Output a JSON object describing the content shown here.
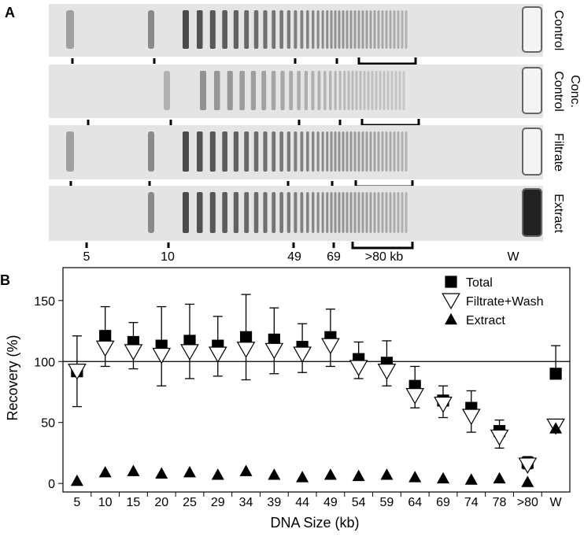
{
  "panel_a": {
    "label": "A",
    "lanes": [
      [
        "Control"
      ],
      [
        "Conc.",
        "Control"
      ],
      [
        "Filtrate"
      ],
      [
        "Extract"
      ]
    ],
    "size_labels": [
      "5",
      "10",
      "49",
      "69",
      ">80 kb",
      "W"
    ]
  },
  "chart_data": {
    "type": "scatter",
    "panel_label": "B",
    "x_label": "DNA Size (kb)",
    "y_label": "Recovery (%)",
    "categories": [
      "5",
      "10",
      "15",
      "20",
      "25",
      "29",
      "34",
      "39",
      "44",
      "49",
      "54",
      "59",
      "64",
      "69",
      "74",
      "78",
      ">80",
      "W"
    ],
    "ylim": [
      -7,
      177
    ],
    "yticks": [
      0,
      50,
      100,
      150
    ],
    "reference_line": 100,
    "series": [
      {
        "name": "Total",
        "color": "#000000",
        "marker": "square",
        "error_direction": "up",
        "values": [
          92,
          121,
          116,
          113,
          117,
          113,
          120,
          118,
          112,
          120,
          102,
          99,
          80,
          68,
          62,
          43,
          17,
          90
        ],
        "errors": [
          29,
          24,
          16,
          32,
          30,
          24,
          35,
          26,
          19,
          23,
          14,
          18,
          16,
          12,
          14,
          9,
          5,
          23
        ]
      },
      {
        "name": "Filtrate+Wash",
        "color": "#ffffff",
        "marker": "triangle-down",
        "error_direction": "down",
        "values": [
          92,
          111,
          108,
          105,
          108,
          106,
          110,
          109,
          106,
          113,
          95,
          92,
          72,
          65,
          55,
          38,
          15,
          47
        ],
        "errors": [
          29,
          15,
          14,
          25,
          22,
          18,
          25,
          19,
          15,
          17,
          9,
          12,
          10,
          11,
          13,
          9,
          3,
          4
        ]
      },
      {
        "name": "Extract",
        "color": "#000000",
        "marker": "triangle-up",
        "values": [
          2,
          9,
          10,
          8,
          9,
          7,
          10,
          7,
          5,
          7,
          6,
          7,
          5,
          4,
          3,
          4,
          1,
          45
        ]
      }
    ]
  }
}
